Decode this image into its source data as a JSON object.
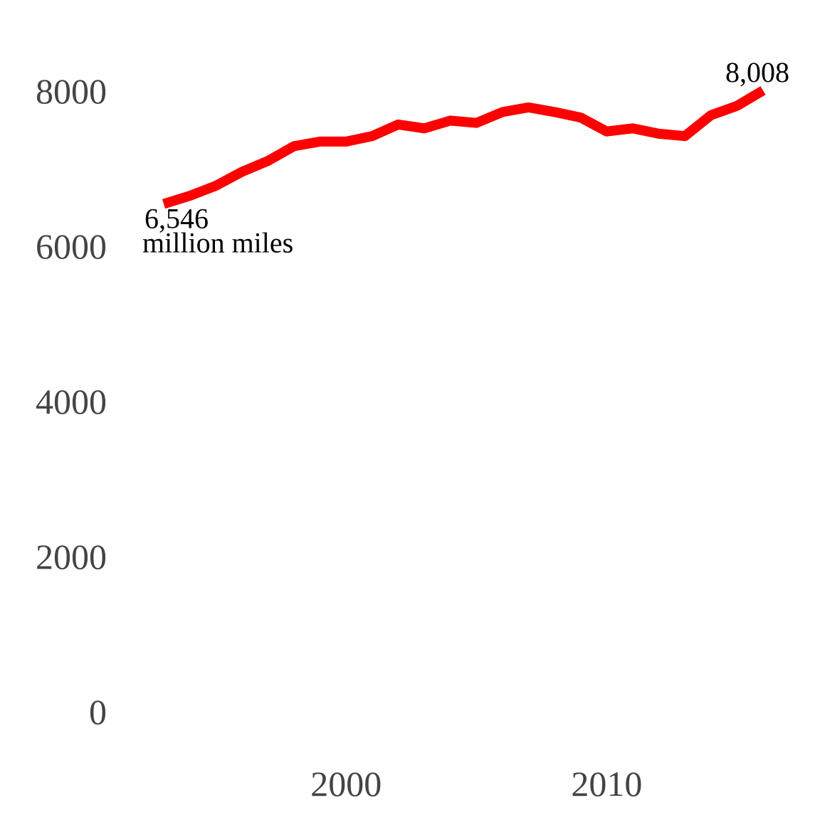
{
  "chart_data": {
    "type": "line",
    "title": "",
    "xlabel": "",
    "ylabel": "",
    "ylim": [
      0,
      8000
    ],
    "xlim": [
      1993,
      2016
    ],
    "y_ticks": [
      "0",
      "2000",
      "4000",
      "6000",
      "8000"
    ],
    "x_ticks": [
      "2000",
      "2010"
    ],
    "grid": false,
    "legend": "none",
    "series": [
      {
        "color": "#ff0000",
        "x": [
          1993,
          1994,
          1995,
          1996,
          1997,
          1998,
          1999,
          2000,
          2001,
          2002,
          2003,
          2004,
          2005,
          2006,
          2007,
          2008,
          2009,
          2010,
          2011,
          2012,
          2013,
          2014,
          2015,
          2016
        ],
        "y": [
          6546,
          6650,
          6780,
          6960,
          7100,
          7290,
          7350,
          7350,
          7420,
          7570,
          7520,
          7620,
          7590,
          7730,
          7790,
          7730,
          7660,
          7480,
          7520,
          7450,
          7420,
          7690,
          7810,
          8008
        ]
      }
    ],
    "annotations": {
      "start_value": "6,546",
      "start_unit": "million miles",
      "end_value": "8,008"
    }
  }
}
